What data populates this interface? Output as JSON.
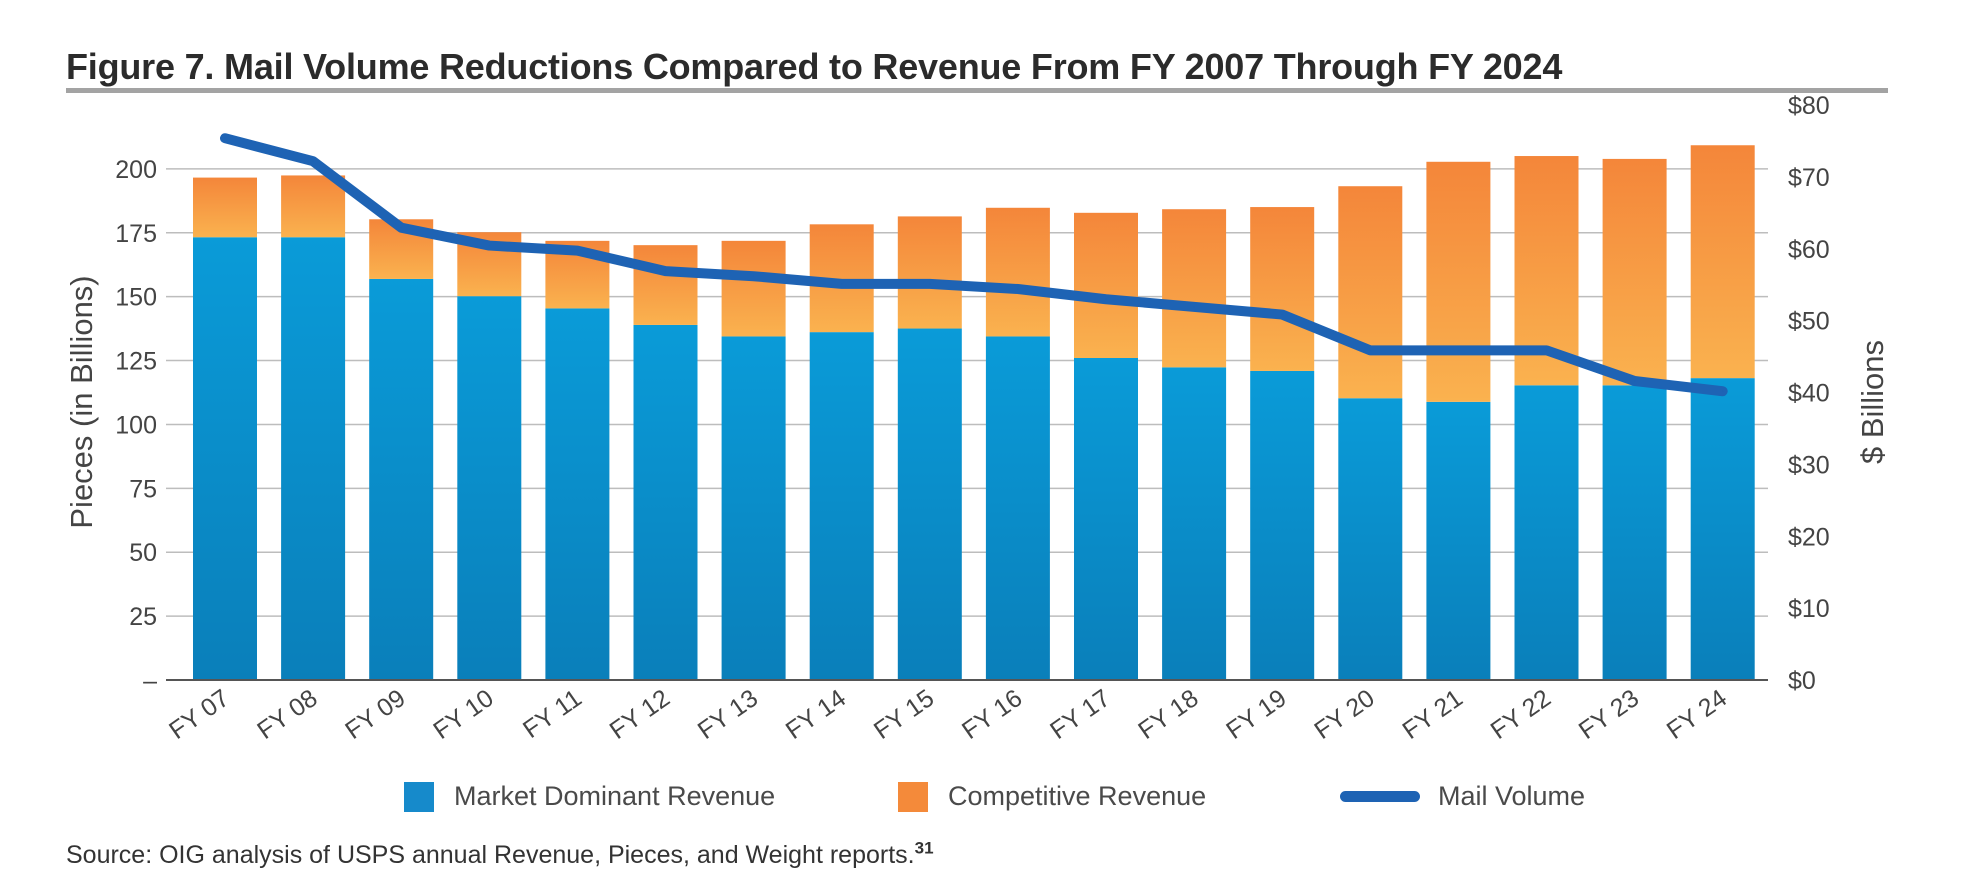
{
  "figure": {
    "title": "Figure 7. Mail Volume Reductions Compared to Revenue From FY 2007 Through FY 2024",
    "source": "Source: OIG analysis of USPS annual Revenue, Pieces, and Weight reports.",
    "source_footnote": "31"
  },
  "legend": {
    "market_dominant": "Market Dominant Revenue",
    "competitive": "Competitive Revenue",
    "mail_volume": "Mail Volume"
  },
  "colors": {
    "market_dominant": "#0a8bcc",
    "competitive": "#f48a3a",
    "mail_volume": "#1e63b4",
    "grid": "#bdbdbd",
    "axis_text": "#444444"
  },
  "chart_data": {
    "type": "bar",
    "title": "Figure 7. Mail Volume Reductions Compared to Revenue From FY 2007 Through FY 2024",
    "categories": [
      "FY 07",
      "FY 08",
      "FY 09",
      "FY 10",
      "FY 11",
      "FY 12",
      "FY 13",
      "FY 14",
      "FY 15",
      "FY 16",
      "FY 17",
      "FY 18",
      "FY 19",
      "FY 20",
      "FY 21",
      "FY 22",
      "FY 23",
      "FY 24"
    ],
    "series": [
      {
        "name": "Market Dominant Revenue",
        "type": "bar",
        "stacked": true,
        "axis": "right",
        "unit": "$ Billions",
        "values": [
          61.6,
          61.6,
          55.8,
          53.4,
          51.7,
          49.4,
          47.8,
          48.4,
          48.9,
          47.8,
          44.8,
          43.5,
          43.0,
          39.2,
          38.7,
          41.0,
          41.0,
          42.0
        ]
      },
      {
        "name": "Competitive Revenue",
        "type": "bar",
        "stacked": true,
        "axis": "right",
        "unit": "$ Billions",
        "values": [
          8.3,
          8.6,
          8.3,
          8.9,
          9.4,
          11.1,
          13.3,
          15.0,
          15.6,
          17.9,
          20.2,
          22.0,
          22.8,
          29.5,
          33.4,
          31.9,
          31.5,
          32.4
        ]
      },
      {
        "name": "Mail Volume",
        "type": "line",
        "axis": "left",
        "unit": "Pieces (in Billions)",
        "values": [
          212,
          203,
          177,
          170,
          168,
          160,
          158,
          155,
          155,
          153,
          149,
          146,
          143,
          129,
          129,
          129,
          117,
          113
        ]
      }
    ],
    "y_left": {
      "label": "Pieces (in Billions)",
      "ylim": [
        0,
        225
      ],
      "ticks": [
        0,
        25,
        50,
        75,
        100,
        125,
        150,
        175,
        200
      ],
      "tick_labels": [
        "–",
        "25",
        "50",
        "75",
        "100",
        "125",
        "150",
        "175",
        "200"
      ]
    },
    "y_right": {
      "label": "$ Billions",
      "ylim": [
        0,
        80
      ],
      "ticks": [
        0,
        10,
        20,
        30,
        40,
        50,
        60,
        70,
        80
      ],
      "tick_labels": [
        "$0",
        "$10",
        "$20",
        "$30",
        "$40",
        "$50",
        "$60",
        "$70",
        "$80"
      ]
    },
    "grid": true,
    "legend_position": "bottom"
  }
}
